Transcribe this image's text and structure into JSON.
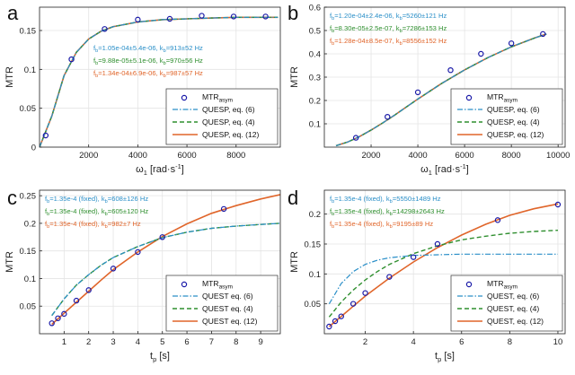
{
  "figure": {
    "colors": {
      "marker": "#1a1aa8",
      "quesp6": "#2a8fc8",
      "quesp4": "#2f8f2f",
      "quesp12": "#e0652a",
      "axis": "#222222",
      "grid": "#e4e4e4"
    }
  },
  "chart_data": [
    {
      "panel_label": "a",
      "type": "line",
      "xlabel_main": "ω",
      "xlabel_sub": "1",
      "xlabel_unit": "[rad·s",
      "xlabel_sup": "-1",
      "xlabel_end": "]",
      "ylabel": "MTR",
      "xlim": [
        0,
        9800
      ],
      "ylim": [
        0,
        0.18
      ],
      "xticks": [
        2000,
        4000,
        6000,
        8000
      ],
      "xticklabels": [
        "2000",
        "4000",
        "6000",
        "8000"
      ],
      "yticks": [
        0,
        0.05,
        0.1,
        0.15
      ],
      "yticklabels": [
        "0",
        "0.05",
        "0.1",
        "0.15"
      ],
      "grid": true,
      "legend_position": "bottom-right",
      "legend": [
        {
          "kind": "marker",
          "label": "MTR",
          "sub": "asym"
        },
        {
          "kind": "dashdot",
          "label": "QUESP, eq. (6)"
        },
        {
          "kind": "dashed",
          "label": "QUESP, eq. (4)"
        },
        {
          "kind": "solid",
          "label": "QUESP, eq. (12)"
        }
      ],
      "annotations": [
        {
          "color": "quesp6",
          "pre": "f",
          "sub1": "b",
          "mid": "=1.05e-04±5.4e-06, k",
          "sub2": "b",
          "post": "=913±52 Hz"
        },
        {
          "color": "quesp4",
          "pre": "f",
          "sub1": "b",
          "mid": "=9.88e-05±5.1e-06, k",
          "sub2": "b",
          "post": "=970±56 Hz"
        },
        {
          "color": "quesp12",
          "pre": "f",
          "sub1": "b",
          "mid": "=1.34e-04±6.9e-06, k",
          "sub2": "b",
          "post": "=987±57 Hz"
        }
      ],
      "x_points": [
        250,
        1300,
        2650,
        4000,
        5300,
        6600,
        7900,
        9200
      ],
      "y_points": [
        0.015,
        0.113,
        0.152,
        0.164,
        0.165,
        0.169,
        0.168,
        0.168
      ],
      "series": [
        {
          "name": "QUESP, eq. (6)",
          "style": "dashdot",
          "color": "quesp6",
          "x": [
            0,
            500,
            1000,
            1500,
            2000,
            2500,
            3000,
            4000,
            5000,
            6000,
            7000,
            8000,
            9000,
            9700
          ],
          "y": [
            0,
            0.04,
            0.092,
            0.122,
            0.139,
            0.149,
            0.155,
            0.161,
            0.164,
            0.165,
            0.166,
            0.167,
            0.167,
            0.167
          ]
        },
        {
          "name": "QUESP, eq. (4)",
          "style": "dashed",
          "color": "quesp4",
          "x": [
            0,
            500,
            1000,
            1500,
            2000,
            2500,
            3000,
            4000,
            5000,
            6000,
            7000,
            8000,
            9000,
            9700
          ],
          "y": [
            0,
            0.04,
            0.092,
            0.122,
            0.139,
            0.149,
            0.155,
            0.161,
            0.164,
            0.165,
            0.166,
            0.167,
            0.167,
            0.167
          ]
        },
        {
          "name": "QUESP, eq. (12)",
          "style": "solid",
          "color": "quesp12",
          "x": [
            0,
            500,
            1000,
            1500,
            2000,
            2500,
            3000,
            4000,
            5000,
            6000,
            7000,
            8000,
            9000,
            9700
          ],
          "y": [
            0,
            0.04,
            0.092,
            0.122,
            0.139,
            0.149,
            0.155,
            0.161,
            0.164,
            0.165,
            0.166,
            0.167,
            0.167,
            0.167
          ]
        }
      ]
    },
    {
      "panel_label": "b",
      "type": "line",
      "xlabel_main": "ω",
      "xlabel_sub": "1",
      "xlabel_unit": "[rad·s",
      "xlabel_sup": "-1",
      "xlabel_end": "]",
      "ylabel": "MTR",
      "xlim": [
        0,
        10300
      ],
      "ylim": [
        0,
        0.6
      ],
      "xticks": [
        2000,
        4000,
        6000,
        8000,
        10000
      ],
      "xticklabels": [
        "2000",
        "4000",
        "6000",
        "8000",
        "10000"
      ],
      "yticks": [
        0.1,
        0.2,
        0.3,
        0.4,
        0.5,
        0.6
      ],
      "yticklabels": [
        "0.1",
        "0.2",
        "0.3",
        "0.4",
        "0.5",
        "0.6"
      ],
      "grid": true,
      "legend_position": "bottom-right",
      "legend": [
        {
          "kind": "marker",
          "label": "MTR",
          "sub": "asym"
        },
        {
          "kind": "dashdot",
          "label": "QUESP, eq. (6)"
        },
        {
          "kind": "dashed",
          "label": "QUESP, eq. (4)"
        },
        {
          "kind": "solid",
          "label": "QUESP, eq. (12)"
        }
      ],
      "annotations": [
        {
          "color": "quesp6",
          "pre": "f",
          "sub1": "b",
          "mid": "=1.20e-04±2.4e-06, k",
          "sub2": "b",
          "post": "=5260±121 Hz"
        },
        {
          "color": "quesp4",
          "pre": "f",
          "sub1": "b",
          "mid": "=8.30e-05±2.5e-07, k",
          "sub2": "b",
          "post": "=7286±153 Hz"
        },
        {
          "color": "quesp12",
          "pre": "f",
          "sub1": "b",
          "mid": "=1.28e-04±8.5e-07, k",
          "sub2": "b",
          "post": "=8556±152 Hz"
        }
      ],
      "x_points": [
        1350,
        2700,
        4000,
        5400,
        6700,
        8000,
        9350
      ],
      "y_points": [
        0.04,
        0.13,
        0.235,
        0.33,
        0.4,
        0.445,
        0.485
      ],
      "series": [
        {
          "name": "QUESP, eq. (6)",
          "style": "dashdot",
          "color": "quesp6",
          "x": [
            500,
            1000,
            1500,
            2000,
            2500,
            3000,
            4000,
            5000,
            6000,
            7000,
            8000,
            9000,
            9500
          ],
          "y": [
            0.006,
            0.022,
            0.045,
            0.073,
            0.104,
            0.137,
            0.206,
            0.272,
            0.331,
            0.384,
            0.43,
            0.468,
            0.485
          ]
        },
        {
          "name": "QUESP, eq. (4)",
          "style": "dashed",
          "color": "quesp4",
          "x": [
            500,
            1000,
            1500,
            2000,
            2500,
            3000,
            4000,
            5000,
            6000,
            7000,
            8000,
            9000,
            9500
          ],
          "y": [
            0.006,
            0.022,
            0.045,
            0.073,
            0.104,
            0.137,
            0.206,
            0.272,
            0.331,
            0.384,
            0.43,
            0.468,
            0.485
          ]
        },
        {
          "name": "QUESP, eq. (12)",
          "style": "solid",
          "color": "quesp12",
          "x": [
            500,
            1000,
            1500,
            2000,
            2500,
            3000,
            4000,
            5000,
            6000,
            7000,
            8000,
            9000,
            9500
          ],
          "y": [
            0.006,
            0.022,
            0.045,
            0.073,
            0.104,
            0.137,
            0.206,
            0.272,
            0.331,
            0.384,
            0.43,
            0.468,
            0.485
          ]
        }
      ]
    },
    {
      "panel_label": "c",
      "type": "line",
      "xlabel_main": "t",
      "xlabel_sub": "p",
      "xlabel_unit": "[s]",
      "xlabel_sup": "",
      "xlabel_end": "",
      "ylabel": "MTR",
      "xlim": [
        0,
        9.8
      ],
      "ylim": [
        0,
        0.26
      ],
      "xticks": [
        1,
        2,
        3,
        4,
        5,
        6,
        7,
        8,
        9
      ],
      "xticklabels": [
        "1",
        "2",
        "3",
        "4",
        "5",
        "6",
        "7",
        "8",
        "9"
      ],
      "yticks": [
        0.05,
        0.1,
        0.15,
        0.2,
        0.25
      ],
      "yticklabels": [
        "0.05",
        "0.1",
        "0.15",
        "0.2",
        "0.25"
      ],
      "grid": true,
      "legend_position": "bottom-right",
      "legend": [
        {
          "kind": "marker",
          "label": "MTR",
          "sub": "asym"
        },
        {
          "kind": "dashdot",
          "label": "QUEST eq. (6)"
        },
        {
          "kind": "dashed",
          "label": "QUEST eq. (4)"
        },
        {
          "kind": "solid",
          "label": "QUEST eq. (12)"
        }
      ],
      "annotations": [
        {
          "color": "quesp6",
          "pre": "f",
          "sub1": "b",
          "mid": "=1.35e-4 (fixed), k",
          "sub2": "b",
          "post": "=608±126 Hz"
        },
        {
          "color": "quesp4",
          "pre": "f",
          "sub1": "b",
          "mid": "=1.35e-4 (fixed), k",
          "sub2": "b",
          "post": "=605±120 Hz"
        },
        {
          "color": "quesp12",
          "pre": "f",
          "sub1": "b",
          "mid": "=1.35e-4 (fixed), k",
          "sub2": "b",
          "post": "=982±7 Hz"
        }
      ],
      "x_points": [
        0.5,
        0.75,
        1.0,
        1.5,
        2.0,
        3.0,
        4.0,
        5.0,
        7.5
      ],
      "y_points": [
        0.019,
        0.028,
        0.036,
        0.06,
        0.079,
        0.118,
        0.148,
        0.175,
        0.226
      ],
      "series": [
        {
          "name": "QUEST eq. (6)",
          "style": "dashdot",
          "color": "quesp6",
          "x": [
            0.5,
            1,
            1.5,
            2,
            2.5,
            3,
            4,
            5,
            6,
            7,
            8,
            9,
            9.8
          ],
          "y": [
            0.033,
            0.063,
            0.088,
            0.107,
            0.124,
            0.138,
            0.158,
            0.174,
            0.184,
            0.191,
            0.195,
            0.198,
            0.2
          ]
        },
        {
          "name": "QUEST eq. (4)",
          "style": "dashed",
          "color": "quesp4",
          "x": [
            0.5,
            1,
            1.5,
            2,
            2.5,
            3,
            4,
            5,
            6,
            7,
            8,
            9,
            9.8
          ],
          "y": [
            0.033,
            0.063,
            0.088,
            0.107,
            0.124,
            0.138,
            0.158,
            0.174,
            0.184,
            0.191,
            0.195,
            0.198,
            0.2
          ]
        },
        {
          "name": "QUEST eq. (12)",
          "style": "solid",
          "color": "quesp12",
          "x": [
            0.5,
            1,
            1.5,
            2,
            2.5,
            3,
            4,
            5,
            6,
            7,
            8,
            9,
            9.8
          ],
          "y": [
            0.017,
            0.037,
            0.057,
            0.077,
            0.097,
            0.116,
            0.148,
            0.176,
            0.199,
            0.218,
            0.232,
            0.244,
            0.252
          ]
        }
      ]
    },
    {
      "panel_label": "d",
      "type": "line",
      "xlabel_main": "t",
      "xlabel_sub": "p",
      "xlabel_unit": "[s]",
      "xlabel_sup": "",
      "xlabel_end": "",
      "ylabel": "MTR",
      "xlim": [
        0.3,
        10.3
      ],
      "ylim": [
        0,
        0.24
      ],
      "xticks": [
        2,
        4,
        6,
        8,
        10
      ],
      "xticklabels": [
        "2",
        "4",
        "6",
        "8",
        "10"
      ],
      "yticks": [
        0.05,
        0.1,
        0.15,
        0.2
      ],
      "yticklabels": [
        "0.05",
        "0.1",
        "0.15",
        "0.2"
      ],
      "grid": true,
      "legend_position": "bottom-right",
      "legend": [
        {
          "kind": "marker",
          "label": "MTR",
          "sub": "asym"
        },
        {
          "kind": "dashdot",
          "label": "QUEST, eq. (6)"
        },
        {
          "kind": "dashed",
          "label": "QUEST, eq. (4)"
        },
        {
          "kind": "solid",
          "label": "QUEST, eq. (12)"
        }
      ],
      "annotations": [
        {
          "color": "quesp6",
          "pre": "f",
          "sub1": "b",
          "mid": "=1.35e-4 (fixed), k",
          "sub2": "b",
          "post": "=5550±1489 Hz"
        },
        {
          "color": "quesp4",
          "pre": "f",
          "sub1": "b",
          "mid": "=1.35e-4 (fixed), k",
          "sub2": "b",
          "post": "=14298±2643 Hz"
        },
        {
          "color": "quesp12",
          "pre": "f",
          "sub1": "b",
          "mid": "=1.35e-4 (fixed), k",
          "sub2": "b",
          "post": "=9195±89 Hz"
        }
      ],
      "x_points": [
        0.5,
        0.75,
        1.0,
        1.5,
        2.0,
        3.0,
        4.0,
        5.0,
        7.5,
        10.0
      ],
      "y_points": [
        0.012,
        0.021,
        0.029,
        0.05,
        0.068,
        0.095,
        0.128,
        0.15,
        0.19,
        0.216
      ],
      "series": [
        {
          "name": "QUEST, eq. (6)",
          "style": "dashdot",
          "color": "quesp6",
          "x": [
            0.5,
            1,
            1.5,
            2,
            2.5,
            3,
            4,
            5,
            6,
            7,
            8,
            9,
            10
          ],
          "y": [
            0.05,
            0.084,
            0.104,
            0.116,
            0.123,
            0.127,
            0.131,
            0.132,
            0.133,
            0.133,
            0.133,
            0.133,
            0.133
          ]
        },
        {
          "name": "QUEST, eq. (4)",
          "style": "dashed",
          "color": "quesp4",
          "x": [
            0.5,
            1,
            1.5,
            2,
            2.5,
            3,
            4,
            5,
            6,
            7,
            8,
            9,
            10
          ],
          "y": [
            0.028,
            0.053,
            0.073,
            0.09,
            0.104,
            0.116,
            0.134,
            0.147,
            0.157,
            0.163,
            0.168,
            0.171,
            0.173
          ]
        },
        {
          "name": "QUEST, eq. (12)",
          "style": "solid",
          "color": "quesp12",
          "x": [
            0.5,
            1,
            1.5,
            2,
            2.5,
            3,
            4,
            5,
            6,
            7,
            8,
            9,
            10
          ],
          "y": [
            0.012,
            0.029,
            0.046,
            0.063,
            0.078,
            0.093,
            0.12,
            0.144,
            0.165,
            0.183,
            0.198,
            0.209,
            0.217
          ]
        }
      ]
    }
  ]
}
